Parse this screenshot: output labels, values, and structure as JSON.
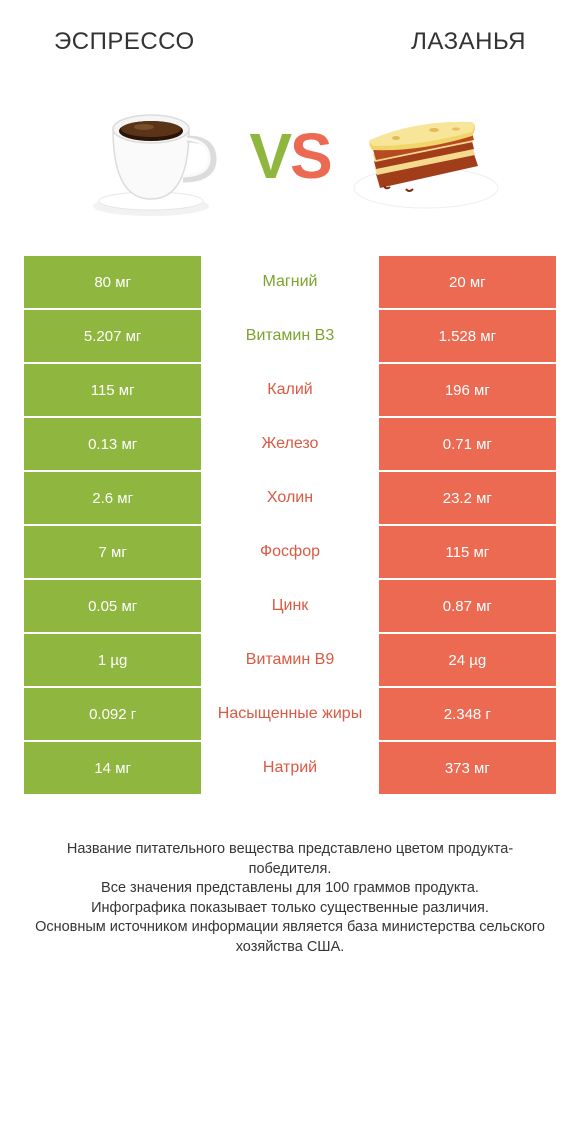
{
  "colors": {
    "green": "#8fb63f",
    "orange": "#ec6a52",
    "text": "#333333",
    "mid_green_text": "#7ca32d",
    "mid_orange_text": "#da5a43"
  },
  "header": {
    "left": "ЭСПРЕССО",
    "right": "ЛАЗАНЬЯ"
  },
  "vs": {
    "v": "V",
    "s": "S"
  },
  "rows": [
    {
      "left": "80 мг",
      "mid": "Магний",
      "right": "20 мг",
      "winner": "left"
    },
    {
      "left": "5.207 мг",
      "mid": "Витамин B3",
      "right": "1.528 мг",
      "winner": "left"
    },
    {
      "left": "115 мг",
      "mid": "Калий",
      "right": "196 мг",
      "winner": "right"
    },
    {
      "left": "0.13 мг",
      "mid": "Железо",
      "right": "0.71 мг",
      "winner": "right"
    },
    {
      "left": "2.6 мг",
      "mid": "Холин",
      "right": "23.2 мг",
      "winner": "right"
    },
    {
      "left": "7 мг",
      "mid": "Фосфор",
      "right": "115 мг",
      "winner": "right"
    },
    {
      "left": "0.05 мг",
      "mid": "Цинк",
      "right": "0.87 мг",
      "winner": "right"
    },
    {
      "left": "1 µg",
      "mid": "Витамин B9",
      "right": "24 µg",
      "winner": "right"
    },
    {
      "left": "0.092 г",
      "mid": "Насыщенные жиры",
      "right": "2.348 г",
      "winner": "right"
    },
    {
      "left": "14 мг",
      "mid": "Натрий",
      "right": "373 мг",
      "winner": "right"
    }
  ],
  "footer": {
    "line1": "Название питательного вещества представлено цветом продукта-победителя.",
    "line2": "Все значения представлены для 100 граммов продукта.",
    "line3": "Инфографика показывает только существенные различия.",
    "line4": "Основным источником информации является база министерства сельского хозяйства США."
  }
}
